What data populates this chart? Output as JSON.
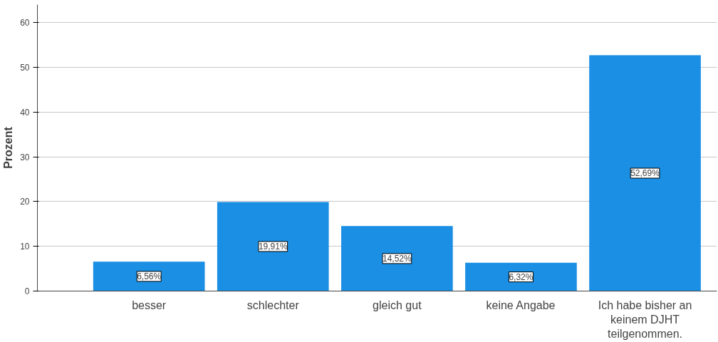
{
  "chart_data": {
    "type": "bar",
    "ylabel": "Prozent",
    "categories": [
      "besser",
      "schlechter",
      "gleich gut",
      "keine Angabe",
      "Ich habe bisher an keinem DJHT teilgenommen."
    ],
    "values": [
      6.56,
      19.91,
      14.52,
      6.32,
      52.69
    ],
    "value_labels": [
      "6,56%",
      "19,91%",
      "14,52%",
      "6,32%",
      "52,69%"
    ],
    "color": "#1a8fe3",
    "ylim": [
      0,
      64
    ],
    "yticks": [
      0,
      10,
      20,
      30,
      40,
      50,
      60
    ],
    "grid": "y"
  }
}
